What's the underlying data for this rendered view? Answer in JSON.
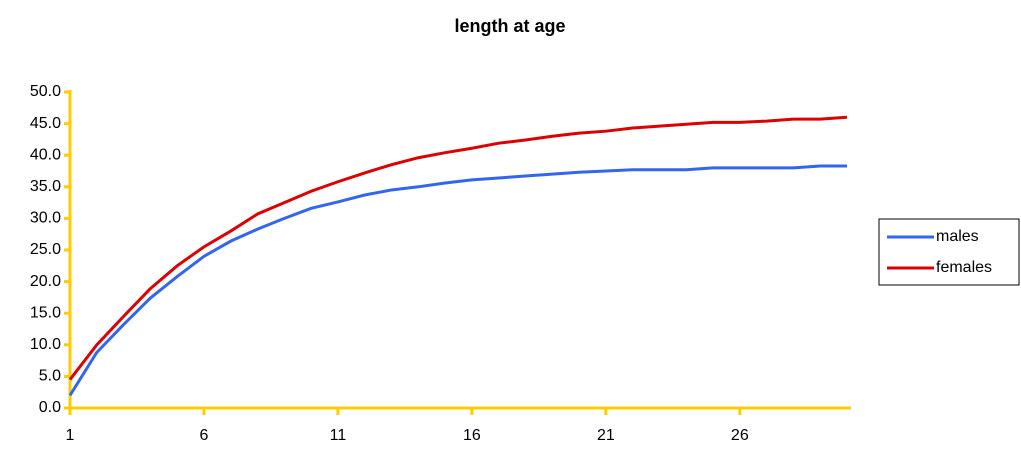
{
  "chart_data": {
    "type": "line",
    "title": "length at age",
    "x": [
      1,
      2,
      3,
      4,
      5,
      6,
      7,
      8,
      9,
      10,
      11,
      12,
      13,
      14,
      15,
      16,
      17,
      18,
      19,
      20,
      21,
      22,
      23,
      24,
      25,
      26,
      27,
      28,
      29,
      30
    ],
    "xlim": [
      1,
      30
    ],
    "xticks": [
      1,
      6,
      11,
      16,
      21,
      26
    ],
    "ylim": [
      0,
      50
    ],
    "yticks": [
      {
        "value": 0,
        "label": "0.0"
      },
      {
        "value": 5,
        "label": "5.0"
      },
      {
        "value": 10,
        "label": "10.0"
      },
      {
        "value": 15,
        "label": "15.0"
      },
      {
        "value": 20,
        "label": "20.0"
      },
      {
        "value": 25,
        "label": "25.0"
      },
      {
        "value": 30,
        "label": "30.0"
      },
      {
        "value": 35,
        "label": "35.0"
      },
      {
        "value": 40,
        "label": "40.0"
      },
      {
        "value": 45,
        "label": "45.0"
      },
      {
        "value": 50,
        "label": "50.0"
      }
    ],
    "axis_color": "#ffcc00",
    "legend": "right",
    "series": [
      {
        "name": "males",
        "color": "#3366ee",
        "values": [
          2.0,
          8.8,
          13.2,
          17.4,
          20.8,
          24.0,
          26.4,
          28.3,
          30.0,
          31.6,
          32.6,
          33.7,
          34.5,
          35.0,
          35.6,
          36.1,
          36.4,
          36.7,
          37.0,
          37.3,
          37.5,
          37.7,
          37.7,
          37.7,
          38.0,
          38.0,
          38.0,
          38.0,
          38.3,
          38.3
        ]
      },
      {
        "name": "females",
        "color": "#dd0000",
        "values": [
          4.5,
          10.0,
          14.5,
          18.9,
          22.5,
          25.5,
          28.0,
          30.7,
          32.5,
          34.3,
          35.8,
          37.2,
          38.5,
          39.6,
          40.4,
          41.1,
          41.9,
          42.4,
          43.0,
          43.5,
          43.8,
          44.3,
          44.6,
          44.9,
          45.2,
          45.2,
          45.4,
          45.7,
          45.7,
          46.0
        ]
      }
    ]
  }
}
